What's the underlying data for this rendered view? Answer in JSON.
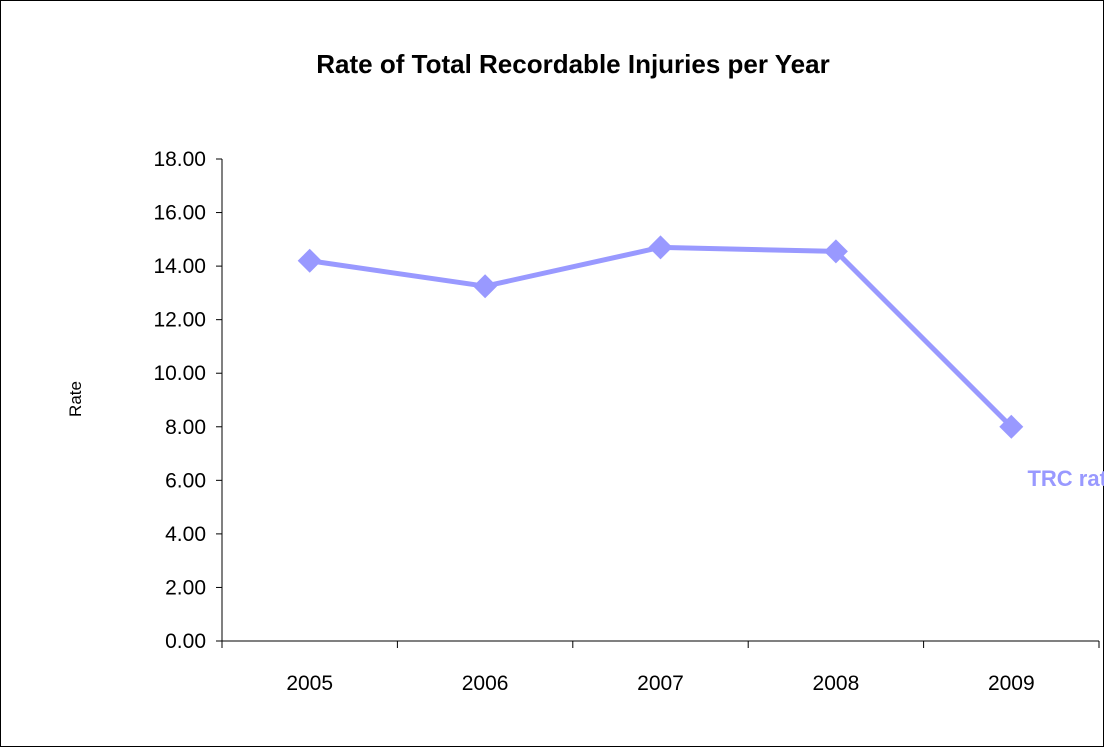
{
  "chart_data": {
    "type": "line",
    "title": "Rate of Total Recordable Injuries per Year",
    "xlabel": "",
    "ylabel": "Rate",
    "categories": [
      "2005",
      "2006",
      "2007",
      "2008",
      "2009"
    ],
    "series": [
      {
        "name": "TRC rate",
        "values": [
          14.2,
          13.25,
          14.7,
          14.55,
          8.0
        ],
        "color": "#9999FF"
      }
    ],
    "ylim": [
      0,
      18
    ],
    "ytick_step": 2,
    "ytick_labels": [
      "0.00",
      "2.00",
      "4.00",
      "6.00",
      "8.00",
      "10.00",
      "12.00",
      "14.00",
      "16.00",
      "18.00"
    ],
    "grid": false,
    "legend": "none",
    "series_label_placement": "end-of-line",
    "marker": "diamond"
  }
}
